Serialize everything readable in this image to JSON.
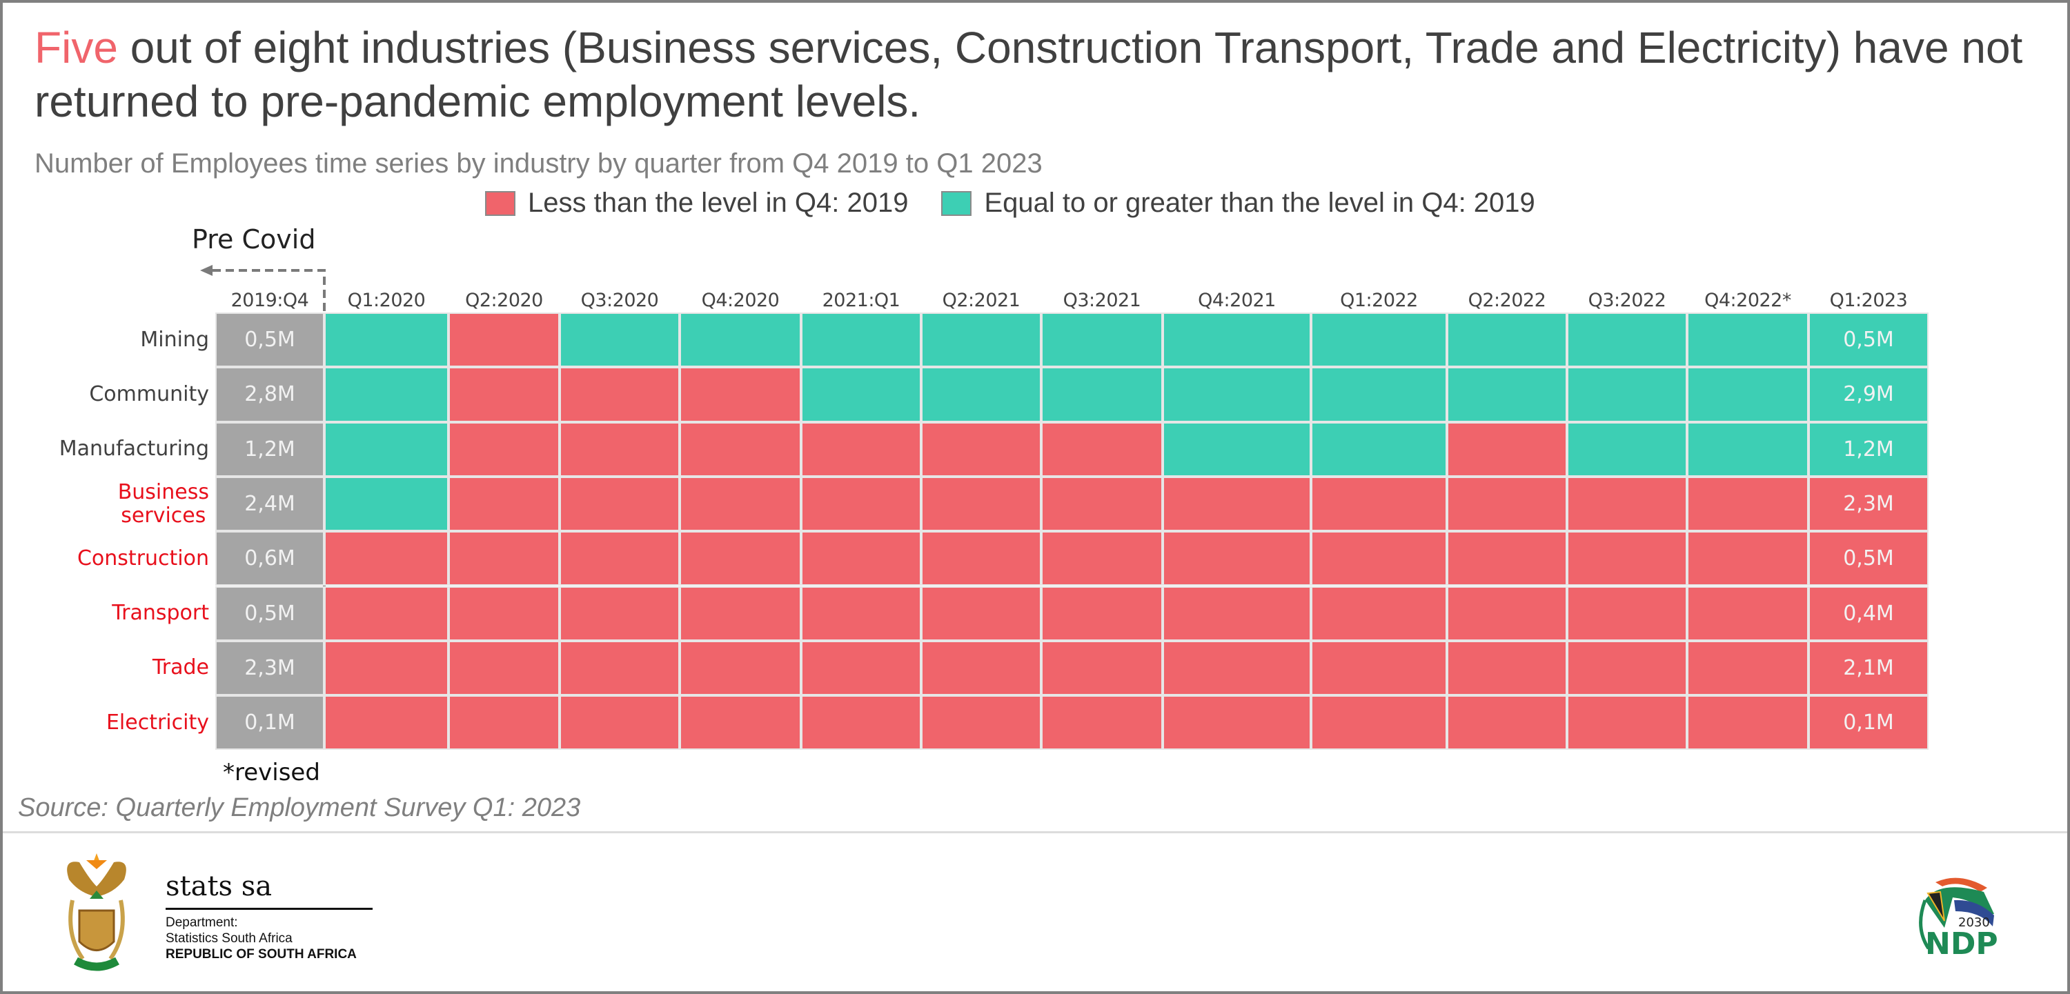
{
  "header": {
    "title_highlight": "Five",
    "title_rest": " out of eight industries (Business services, Construction Transport, Trade and Electricity) have not returned to pre-pandemic employment levels.",
    "subtitle": "Number of Employees time series by industry by quarter from Q4 2019 to Q1 2023"
  },
  "colors": {
    "less": "#F0646B",
    "greater_equal": "#3DCFB4",
    "baseline": "#A5A5A5",
    "highlight_text": "#F0646B",
    "red_label": "#E8101C",
    "normal_label": "#404040"
  },
  "legend": [
    {
      "label": "Less than the level in Q4: 2019",
      "status": "less"
    },
    {
      "label": "Equal to or greater than the level in Q4: 2019",
      "status": "greater_equal"
    }
  ],
  "annotations": {
    "pre_covid": "Pre Covid",
    "revised_note": "*revised",
    "source": "Source: Quarterly Employment Survey Q1: 2023"
  },
  "footer": {
    "stats_name": "stats sa",
    "dept_line1": "Department:",
    "dept_line2": "Statistics South Africa",
    "dept_line3": "REPUBLIC OF SOUTH AFRICA",
    "ndp_year": "2030",
    "ndp_text": "NDP"
  },
  "chart_data": {
    "type": "heatmap",
    "title": "Number of Employees time series by industry by quarter from Q4 2019 to Q1 2023",
    "columns": [
      "2019:Q4",
      "Q1:2020",
      "Q2:2020",
      "Q3:2020",
      "Q4:2020",
      "2021:Q1",
      "Q2:2021",
      "Q3:2021",
      "Q4:2021",
      "Q1:2022",
      "Q2:2022",
      "Q3:2022",
      "Q4:2022*",
      "Q1:2023"
    ],
    "legend_placement": "top",
    "rows": [
      {
        "industry": "Mining",
        "highlighted": false,
        "baseline": "0,5M",
        "latest": "0,5M",
        "status": [
          "G",
          "R",
          "G",
          "G",
          "G",
          "G",
          "G",
          "G",
          "G",
          "G",
          "G",
          "G",
          "G"
        ]
      },
      {
        "industry": "Community",
        "highlighted": false,
        "baseline": "2,8M",
        "latest": "2,9M",
        "status": [
          "G",
          "R",
          "R",
          "R",
          "G",
          "G",
          "G",
          "G",
          "G",
          "G",
          "G",
          "G",
          "G"
        ]
      },
      {
        "industry": "Manufacturing",
        "highlighted": false,
        "baseline": "1,2M",
        "latest": "1,2M",
        "status": [
          "G",
          "R",
          "R",
          "R",
          "R",
          "R",
          "R",
          "G",
          "G",
          "R",
          "G",
          "G",
          "G"
        ]
      },
      {
        "industry": "Business services",
        "highlighted": true,
        "baseline": "2,4M",
        "latest": "2,3M",
        "status": [
          "G",
          "R",
          "R",
          "R",
          "R",
          "R",
          "R",
          "R",
          "R",
          "R",
          "R",
          "R",
          "R"
        ]
      },
      {
        "industry": "Construction",
        "highlighted": true,
        "baseline": "0,6M",
        "latest": "0,5M",
        "status": [
          "R",
          "R",
          "R",
          "R",
          "R",
          "R",
          "R",
          "R",
          "R",
          "R",
          "R",
          "R",
          "R"
        ]
      },
      {
        "industry": "Transport",
        "highlighted": true,
        "baseline": "0,5M",
        "latest": "0,4M",
        "status": [
          "R",
          "R",
          "R",
          "R",
          "R",
          "R",
          "R",
          "R",
          "R",
          "R",
          "R",
          "R",
          "R"
        ]
      },
      {
        "industry": "Trade",
        "highlighted": true,
        "baseline": "2,3M",
        "latest": "2,1M",
        "status": [
          "R",
          "R",
          "R",
          "R",
          "R",
          "R",
          "R",
          "R",
          "R",
          "R",
          "R",
          "R",
          "R"
        ]
      },
      {
        "industry": "Electricity",
        "highlighted": true,
        "baseline": "0,1M",
        "latest": "0,1M",
        "status": [
          "R",
          "R",
          "R",
          "R",
          "R",
          "R",
          "R",
          "R",
          "R",
          "R",
          "R",
          "R",
          "R"
        ]
      }
    ],
    "status_key": {
      "R": "Less than the level in Q4: 2019",
      "G": "Equal to or greater than the level in Q4: 2019"
    }
  }
}
